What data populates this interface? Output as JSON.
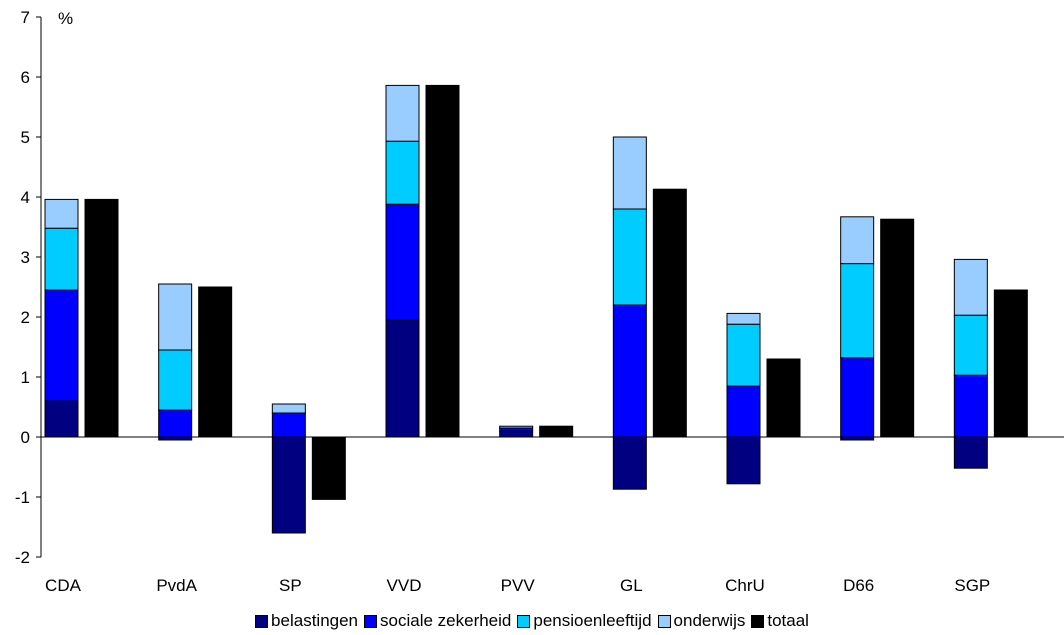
{
  "chart_data": {
    "type": "bar",
    "stacked_with_total": true,
    "unit_label": "%",
    "categories": [
      "CDA",
      "PvdA",
      "SP",
      "VVD",
      "PVV",
      "GL",
      "ChrU",
      "D66",
      "SGP"
    ],
    "series": [
      {
        "name": "belastingen",
        "color": "#000080",
        "values": [
          0.6,
          -0.05,
          -1.6,
          1.95,
          0.1,
          -0.87,
          -0.78,
          -0.05,
          -0.52
        ]
      },
      {
        "name": "sociale zekerheid",
        "color": "#0000ff",
        "values": [
          1.85,
          0.45,
          0.4,
          1.93,
          0.05,
          2.2,
          0.85,
          1.32,
          1.03
        ]
      },
      {
        "name": "pensioenleeftijd",
        "color": "#00ccff",
        "values": [
          1.03,
          1.0,
          0.0,
          1.05,
          0.0,
          1.6,
          1.03,
          1.57,
          1.0
        ]
      },
      {
        "name": "onderwijs",
        "color": "#99ccff",
        "values": [
          0.48,
          1.1,
          0.15,
          0.93,
          0.03,
          1.2,
          0.18,
          0.78,
          0.93
        ]
      },
      {
        "name": "totaal",
        "color": "#000000",
        "values": [
          3.96,
          2.5,
          -1.04,
          5.86,
          0.18,
          4.13,
          1.3,
          3.63,
          2.45
        ]
      }
    ],
    "ylim": [
      -2,
      7
    ],
    "yticks": [
      -2,
      -1,
      0,
      1,
      2,
      3,
      4,
      5,
      6,
      7
    ],
    "grid": false,
    "legend_position": "bottom"
  }
}
